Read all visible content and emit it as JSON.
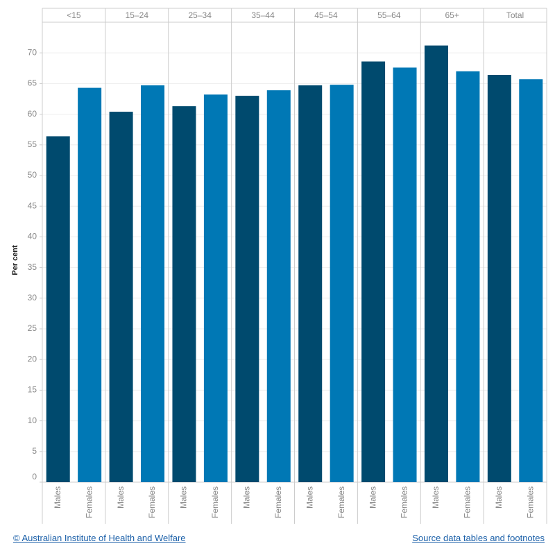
{
  "chart_data": {
    "type": "bar",
    "y_label": "Per cent",
    "categories": [
      "<15",
      "15–24",
      "25–34",
      "35–44",
      "45–54",
      "55–64",
      "65+",
      "Total"
    ],
    "series": [
      {
        "name": "Males",
        "color": "#004a6e",
        "values": [
          56.4,
          60.4,
          61.3,
          63.0,
          64.7,
          68.6,
          71.2,
          66.4
        ]
      },
      {
        "name": "Females",
        "color": "#0078b5",
        "values": [
          64.3,
          64.7,
          63.2,
          63.9,
          64.8,
          67.6,
          67.0,
          65.7
        ]
      }
    ],
    "ylim": [
      0,
      75
    ],
    "yticks": [
      0,
      5,
      10,
      15,
      20,
      25,
      30,
      35,
      40,
      45,
      50,
      55,
      60,
      65,
      70
    ],
    "grid": true
  },
  "footer": {
    "left": "© Australian Institute of Health and Welfare",
    "right": "Source data tables and footnotes"
  }
}
